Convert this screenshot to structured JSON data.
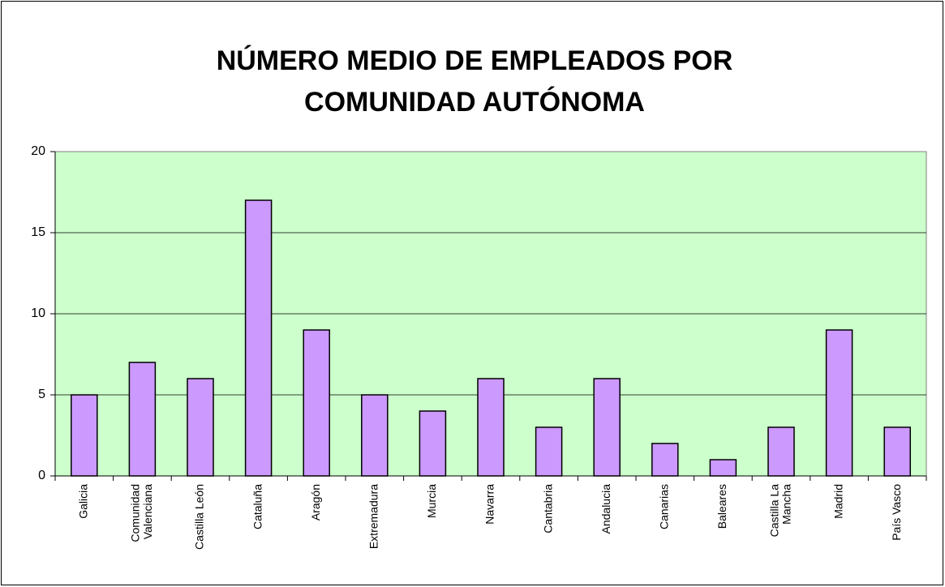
{
  "chart_data": {
    "type": "bar",
    "title": [
      "NÚMERO MEDIO DE EMPLEADOS POR",
      "COMUNIDAD AUTÓNOMA"
    ],
    "categories": [
      "Galicia",
      "Comunidad Valenciana",
      "Castilla León",
      "Cataluña",
      "Aragón",
      "Extremadura",
      "Murcia",
      "Navarra",
      "Cantabria",
      "Andalucia",
      "Canarias",
      "Baleares",
      "Castilla La Mancha",
      "Madrid",
      "País Vasco"
    ],
    "values": [
      5,
      7,
      6,
      17,
      9,
      5,
      4,
      6,
      3,
      6,
      2,
      1,
      3,
      9,
      3
    ],
    "color": "#cc99ff",
    "plot_background": "#ccffcc",
    "ylim": [
      0,
      20
    ],
    "yticks": [
      0,
      5,
      10,
      15,
      20
    ],
    "grid": true
  }
}
